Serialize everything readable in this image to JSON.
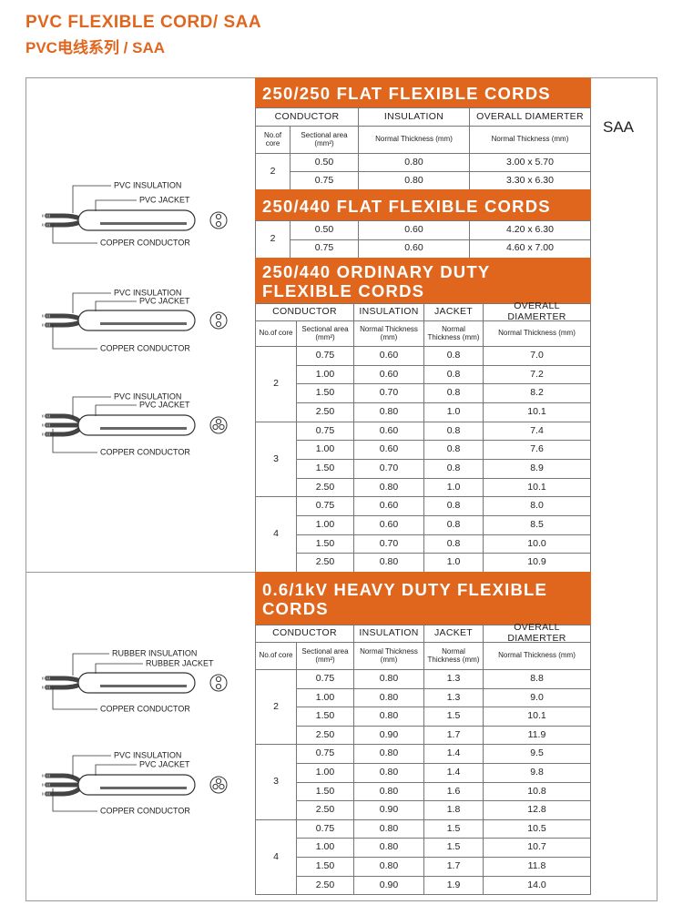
{
  "header": {
    "title": "PVC FLEXIBLE CORD/ SAA",
    "subtitle": "PVC电线系列 / SAA"
  },
  "side_label": "SAA",
  "illustrations": [
    {
      "insulation": "PVC INSULATION",
      "jacket": "PVC JACKET",
      "conductor": "COPPER CONDUCTOR"
    },
    {
      "insulation": "PVC INSULATION",
      "jacket": "PVC JACKET",
      "conductor": "COPPER CONDUCTOR"
    },
    {
      "insulation": "PVC INSULATION",
      "jacket": "PVC JACKET",
      "conductor": "COPPER CONDUCTOR"
    },
    {
      "insulation": "RUBBER INSULATION",
      "jacket": "RUBBER JACKET",
      "conductor": "COPPER CONDUCTOR"
    },
    {
      "insulation": "PVC INSULATION",
      "jacket": "PVC JACKET",
      "conductor": "COPPER CONDUCTOR"
    }
  ],
  "sections": [
    {
      "title": "250/250 FLAT FLEXIBLE CORDS",
      "columns": [
        "CONDUCTOR",
        "INSULATION",
        "OVERALL DIAMERTER"
      ],
      "subheaders": [
        "No.of core",
        "Sectional area (mm²)",
        "Normal Thickness (mm)",
        "Normal Thickness (mm)"
      ],
      "groups": [
        {
          "core": "2",
          "rows": [
            [
              "0.50",
              "0.80",
              "3.00 x 5.70"
            ],
            [
              "0.75",
              "0.80",
              "3.30 x 6.30"
            ]
          ]
        }
      ]
    },
    {
      "title": "250/440 FLAT FLEXIBLE CORDS",
      "groups": [
        {
          "core": "2",
          "rows": [
            [
              "0.50",
              "0.60",
              "4.20 x 6.30"
            ],
            [
              "0.75",
              "0.60",
              "4.60 x 7.00"
            ]
          ]
        }
      ]
    },
    {
      "title": "250/440 ORDINARY DUTY FLEXIBLE CORDS",
      "columns": [
        "CONDUCTOR",
        "INSULATION",
        "JACKET",
        "OVERALL DIAMERTER"
      ],
      "subheaders": [
        "No.of core",
        "Sectional area (mm²)",
        "Normal Thickness (mm)",
        "Normal Thickness (mm)",
        "Normal Thickness (mm)"
      ],
      "groups": [
        {
          "core": "2",
          "rows": [
            [
              "0.75",
              "0.60",
              "0.8",
              "7.0"
            ],
            [
              "1.00",
              "0.60",
              "0.8",
              "7.2"
            ],
            [
              "1.50",
              "0.70",
              "0.8",
              "8.2"
            ],
            [
              "2.50",
              "0.80",
              "1.0",
              "10.1"
            ]
          ]
        },
        {
          "core": "3",
          "rows": [
            [
              "0.75",
              "0.60",
              "0.8",
              "7.4"
            ],
            [
              "1.00",
              "0.60",
              "0.8",
              "7.6"
            ],
            [
              "1.50",
              "0.70",
              "0.8",
              "8.9"
            ],
            [
              "2.50",
              "0.80",
              "1.0",
              "10.1"
            ]
          ]
        },
        {
          "core": "4",
          "rows": [
            [
              "0.75",
              "0.60",
              "0.8",
              "8.0"
            ],
            [
              "1.00",
              "0.60",
              "0.8",
              "8.5"
            ],
            [
              "1.50",
              "0.70",
              "0.8",
              "10.0"
            ],
            [
              "2.50",
              "0.80",
              "1.0",
              "10.9"
            ]
          ]
        }
      ]
    },
    {
      "title": "0.6/1kV HEAVY DUTY FLEXIBLE CORDS",
      "columns": [
        "CONDUCTOR",
        "INSULATION",
        "JACKET",
        "OVERALL DIAMERTER"
      ],
      "subheaders": [
        "No.of core",
        "Sectional area (mm²)",
        "Normal Thickness (mm)",
        "Normal Thickness (mm)",
        "Normal Thickness (mm)"
      ],
      "groups": [
        {
          "core": "2",
          "rows": [
            [
              "0.75",
              "0.80",
              "1.3",
              "8.8"
            ],
            [
              "1.00",
              "0.80",
              "1.3",
              "9.0"
            ],
            [
              "1.50",
              "0.80",
              "1.5",
              "10.1"
            ],
            [
              "2.50",
              "0.90",
              "1.7",
              "11.9"
            ]
          ]
        },
        {
          "core": "3",
          "rows": [
            [
              "0.75",
              "0.80",
              "1.4",
              "9.5"
            ],
            [
              "1.00",
              "0.80",
              "1.4",
              "9.8"
            ],
            [
              "1.50",
              "0.80",
              "1.6",
              "10.8"
            ],
            [
              "2.50",
              "0.90",
              "1.8",
              "12.8"
            ]
          ]
        },
        {
          "core": "4",
          "rows": [
            [
              "0.75",
              "0.80",
              "1.5",
              "10.5"
            ],
            [
              "1.00",
              "0.80",
              "1.5",
              "10.7"
            ],
            [
              "1.50",
              "0.80",
              "1.7",
              "11.8"
            ],
            [
              "2.50",
              "0.90",
              "1.9",
              "14.0"
            ]
          ]
        }
      ]
    }
  ]
}
